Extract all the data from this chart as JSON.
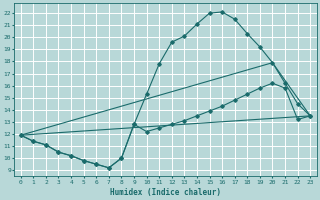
{
  "xlabel": "Humidex (Indice chaleur)",
  "background_color": "#b8d8d8",
  "grid_color": "#ffffff",
  "line_color": "#1a6b6b",
  "xlim": [
    -0.5,
    23.5
  ],
  "ylim": [
    8.5,
    22.8
  ],
  "xticks": [
    0,
    1,
    2,
    3,
    4,
    5,
    6,
    7,
    8,
    9,
    10,
    11,
    12,
    13,
    14,
    15,
    16,
    17,
    18,
    19,
    20,
    21,
    22,
    23
  ],
  "yticks": [
    9,
    10,
    11,
    12,
    13,
    14,
    15,
    16,
    17,
    18,
    19,
    20,
    21,
    22
  ],
  "series1_x": [
    0,
    1,
    2,
    3,
    4,
    5,
    6,
    7,
    8,
    9,
    10,
    11,
    12,
    13,
    14,
    15,
    16,
    17,
    18,
    19,
    20,
    21,
    22,
    23
  ],
  "series1_y": [
    11.9,
    11.4,
    11.1,
    10.5,
    10.2,
    9.8,
    9.5,
    9.2,
    10.0,
    12.8,
    15.3,
    17.8,
    19.6,
    20.1,
    21.1,
    22.0,
    22.1,
    21.5,
    20.3,
    19.2,
    17.9,
    16.2,
    14.5,
    13.5
  ],
  "series2_x": [
    0,
    1,
    2,
    3,
    4,
    5,
    6,
    7,
    8,
    9,
    10,
    11,
    12,
    13,
    14,
    15,
    16,
    17,
    18,
    19,
    20,
    21,
    22,
    23
  ],
  "series2_y": [
    11.9,
    11.4,
    11.1,
    10.5,
    10.2,
    9.8,
    9.5,
    9.2,
    10.0,
    12.8,
    12.2,
    12.5,
    12.8,
    13.1,
    13.5,
    13.9,
    14.3,
    14.8,
    15.3,
    15.8,
    16.2,
    15.8,
    13.2,
    13.5
  ],
  "series3_x": [
    0,
    23
  ],
  "series3_y": [
    11.9,
    13.5
  ],
  "series4_x": [
    0,
    20,
    23
  ],
  "series4_y": [
    11.9,
    17.9,
    13.5
  ]
}
